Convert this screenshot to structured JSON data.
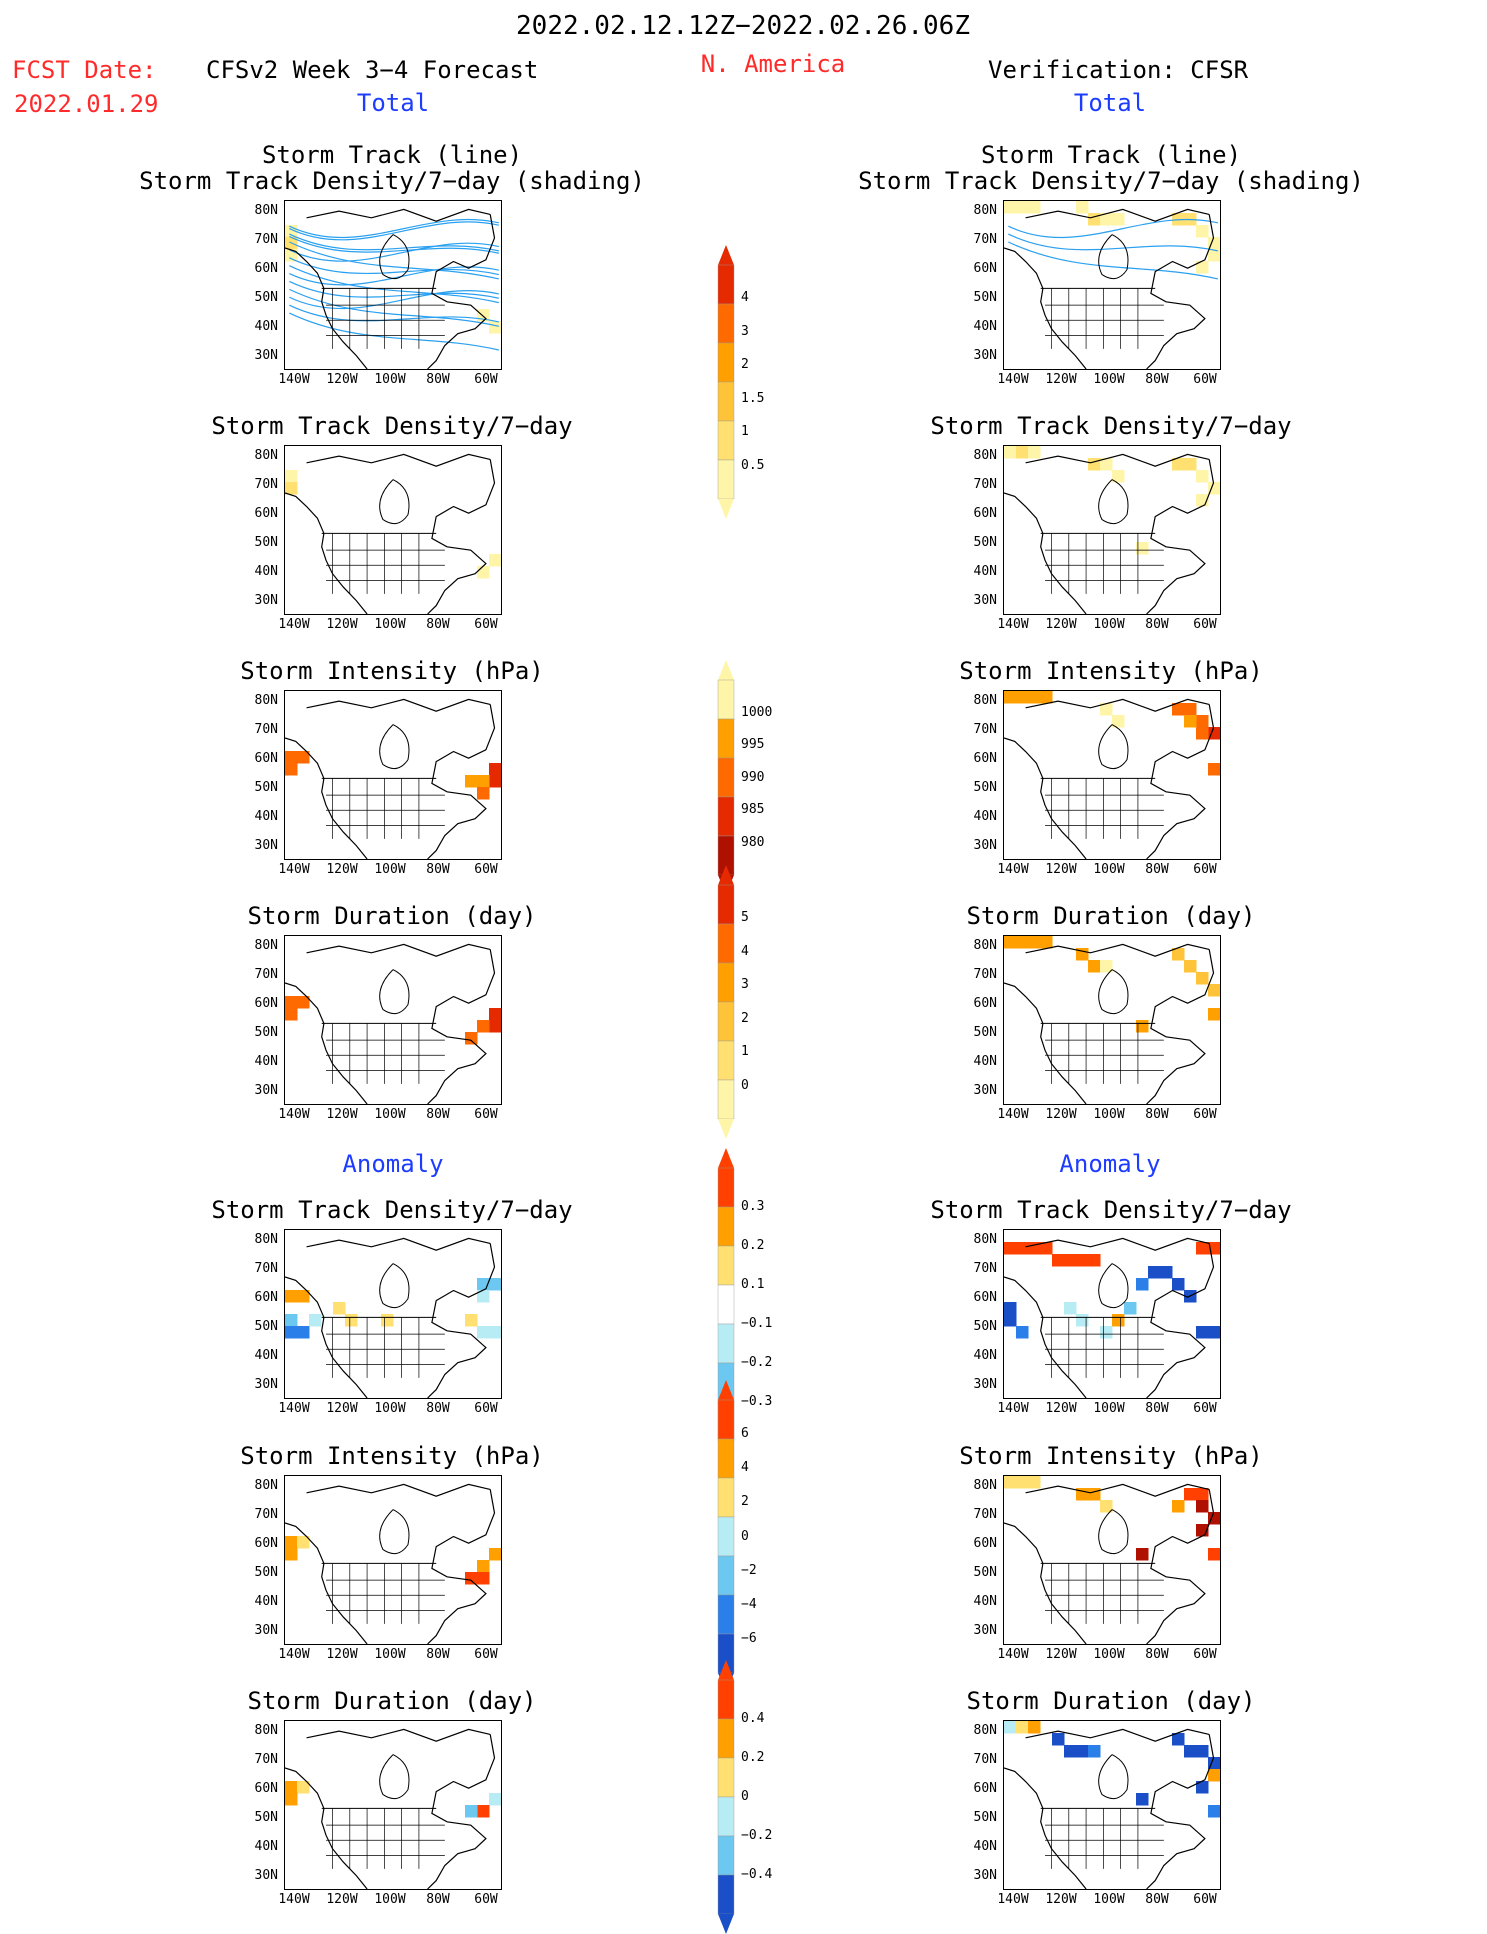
{
  "header": {
    "period": "2022.02.12.12Z−2022.02.26.06Z",
    "region": "N. America",
    "fcst_label": "FCST Date:",
    "fcst_date": "2022.01.29",
    "left_title": "CFSv2 Week 3−4 Forecast",
    "right_title": "Verification: CFSR",
    "total_left": "Total",
    "total_right": "Total",
    "anomaly_left": "Anomaly",
    "anomaly_right": "Anomaly"
  },
  "colors": {
    "title_red": "#ff2a2a",
    "title_blue": "#1c3cff",
    "storm_line": "#2aa0f0",
    "total_scale": [
      "#fff5a8",
      "#ffe070",
      "#ffc33a",
      "#ffa000",
      "#ff6a00",
      "#e62a00",
      "#b01000"
    ],
    "intensity_scale": [
      "#fff5a8",
      "#ffa000",
      "#ff6a00",
      "#e62a00",
      "#b01000"
    ],
    "anom_pos": [
      "#ffe070",
      "#ffa000",
      "#ff4000"
    ],
    "anom_neg": [
      "#b8ecf4",
      "#6cc8f0",
      "#2a7fe8",
      "#1a4fc8"
    ]
  },
  "chart_data": [
    {
      "type": "heatmap",
      "id": "fcst-track",
      "title": "Storm Track (line)",
      "subtitle": "Storm Track Density/7−day (shading)",
      "xlabel": "",
      "ylabel": "",
      "x_ticks": [
        "140W",
        "120W",
        "100W",
        "80W",
        "60W"
      ],
      "y_ticks": [
        "80N",
        "70N",
        "60N",
        "50N",
        "40N",
        "30N"
      ],
      "xlim": [
        -140,
        -50
      ],
      "ylim": [
        25,
        85
      ],
      "overlay": "storm track lines"
    },
    {
      "type": "heatmap",
      "id": "cfsr-track",
      "title": "Storm Track (line)",
      "subtitle": "Storm Track Density/7−day (shading)",
      "x_ticks": [
        "140W",
        "120W",
        "100W",
        "80W",
        "60W"
      ],
      "y_ticks": [
        "80N",
        "70N",
        "60N",
        "50N",
        "40N",
        "30N"
      ],
      "xlim": [
        -140,
        -50
      ],
      "ylim": [
        25,
        85
      ],
      "overlay": "storm track lines"
    },
    {
      "type": "heatmap",
      "id": "fcst-density",
      "title": "Storm Track Density/7−day",
      "x_ticks": [
        "140W",
        "120W",
        "100W",
        "80W",
        "60W"
      ],
      "y_ticks": [
        "80N",
        "70N",
        "60N",
        "50N",
        "40N",
        "30N"
      ]
    },
    {
      "type": "heatmap",
      "id": "cfsr-density",
      "title": "Storm Track Density/7−day",
      "x_ticks": [
        "140W",
        "120W",
        "100W",
        "80W",
        "60W"
      ],
      "y_ticks": [
        "80N",
        "70N",
        "60N",
        "50N",
        "40N",
        "30N"
      ]
    },
    {
      "type": "heatmap",
      "id": "fcst-intensity",
      "title": "Storm Intensity (hPa)",
      "x_ticks": [
        "140W",
        "120W",
        "100W",
        "80W",
        "60W"
      ],
      "y_ticks": [
        "80N",
        "70N",
        "60N",
        "50N",
        "40N",
        "30N"
      ]
    },
    {
      "type": "heatmap",
      "id": "cfsr-intensity",
      "title": "Storm Intensity (hPa)",
      "x_ticks": [
        "140W",
        "120W",
        "100W",
        "80W",
        "60W"
      ],
      "y_ticks": [
        "80N",
        "70N",
        "60N",
        "50N",
        "40N",
        "30N"
      ]
    },
    {
      "type": "heatmap",
      "id": "fcst-duration",
      "title": "Storm Duration (day)",
      "x_ticks": [
        "140W",
        "120W",
        "100W",
        "80W",
        "60W"
      ],
      "y_ticks": [
        "80N",
        "70N",
        "60N",
        "50N",
        "40N",
        "30N"
      ]
    },
    {
      "type": "heatmap",
      "id": "cfsr-duration",
      "title": "Storm Duration (day)",
      "x_ticks": [
        "140W",
        "120W",
        "100W",
        "80W",
        "60W"
      ],
      "y_ticks": [
        "80N",
        "70N",
        "60N",
        "50N",
        "40N",
        "30N"
      ]
    },
    {
      "type": "heatmap",
      "id": "fcst-density-anom",
      "title": "Storm Track Density/7−day",
      "x_ticks": [
        "140W",
        "120W",
        "100W",
        "80W",
        "60W"
      ],
      "y_ticks": [
        "80N",
        "70N",
        "60N",
        "50N",
        "40N",
        "30N"
      ]
    },
    {
      "type": "heatmap",
      "id": "cfsr-density-anom",
      "title": "Storm Track Density/7−day",
      "x_ticks": [
        "140W",
        "120W",
        "100W",
        "80W",
        "60W"
      ],
      "y_ticks": [
        "80N",
        "70N",
        "60N",
        "50N",
        "40N",
        "30N"
      ]
    },
    {
      "type": "heatmap",
      "id": "fcst-intensity-anom",
      "title": "Storm Intensity (hPa)",
      "x_ticks": [
        "140W",
        "120W",
        "100W",
        "80W",
        "60W"
      ],
      "y_ticks": [
        "80N",
        "70N",
        "60N",
        "50N",
        "40N",
        "30N"
      ]
    },
    {
      "type": "heatmap",
      "id": "cfsr-intensity-anom",
      "title": "Storm Intensity (hPa)",
      "x_ticks": [
        "140W",
        "120W",
        "100W",
        "80W",
        "60W"
      ],
      "y_ticks": [
        "80N",
        "70N",
        "60N",
        "50N",
        "40N",
        "30N"
      ]
    },
    {
      "type": "heatmap",
      "id": "fcst-duration-anom",
      "title": "Storm Duration (day)",
      "x_ticks": [
        "140W",
        "120W",
        "100W",
        "80W",
        "60W"
      ],
      "y_ticks": [
        "80N",
        "70N",
        "60N",
        "50N",
        "40N",
        "30N"
      ]
    },
    {
      "type": "heatmap",
      "id": "cfsr-duration-anom",
      "title": "Storm Duration (day)",
      "x_ticks": [
        "140W",
        "120W",
        "100W",
        "80W",
        "60W"
      ],
      "y_ticks": [
        "80N",
        "70N",
        "60N",
        "50N",
        "40N",
        "30N"
      ]
    }
  ],
  "colorbars": {
    "density_total": [
      "4",
      "3",
      "2",
      "1.5",
      "1",
      "0.5"
    ],
    "intensity_total": [
      "1000",
      "995",
      "990",
      "985",
      "980"
    ],
    "duration_total": [
      "5",
      "4",
      "3",
      "2",
      "1",
      "0"
    ],
    "density_anom": [
      "0.3",
      "0.2",
      "0.1",
      "−0.1",
      "−0.2",
      "−0.3"
    ],
    "intensity_anom": [
      "6",
      "4",
      "2",
      "0",
      "−2",
      "−4",
      "−6"
    ],
    "duration_anom": [
      "0.4",
      "0.2",
      "0",
      "−0.2",
      "−0.4"
    ]
  }
}
